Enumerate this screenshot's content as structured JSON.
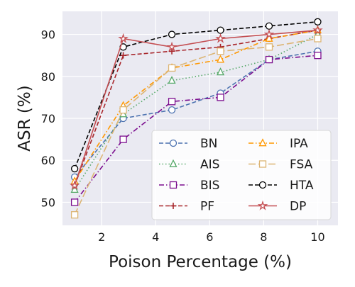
{
  "chart_data": {
    "type": "line",
    "title": "",
    "xlabel": "Poison Percentage (%)",
    "ylabel": "ASR (%)",
    "xlim": [
      0.55,
      10.75
    ],
    "ylim": [
      44.5,
      95.5
    ],
    "xticks": [
      2,
      4,
      6,
      8,
      10
    ],
    "yticks": [
      50,
      60,
      70,
      80,
      90
    ],
    "grid": true,
    "legend_position": "lower-right",
    "legend_columns": 2,
    "x": [
      1,
      2.8,
      4.6,
      6.4,
      8.2,
      10
    ],
    "series": [
      {
        "name": "BN",
        "color": "#4c72b0",
        "dash": "dashed",
        "marker": "circle",
        "values": [
          56,
          70,
          72,
          76,
          84,
          86
        ]
      },
      {
        "name": "AIS",
        "color": "#55a868",
        "dash": "dotted",
        "marker": "triangle",
        "values": [
          53,
          71,
          79,
          81,
          84,
          90
        ]
      },
      {
        "name": "BIS",
        "color": "#7b0d8e",
        "dash": "dashdot",
        "marker": "square",
        "values": [
          50,
          65,
          74,
          75,
          84,
          85
        ]
      },
      {
        "name": "PF",
        "color": "#a8272c",
        "dash": "dashed",
        "marker": "plus",
        "values": [
          54,
          85,
          86,
          87,
          89,
          91
        ]
      },
      {
        "name": "IPA",
        "color": "#ff9800",
        "dash": "dashdot",
        "marker": "triangle",
        "values": [
          55,
          73,
          82,
          84,
          89,
          91
        ]
      },
      {
        "name": "FSA",
        "color": "#dcb574",
        "dash": "longdash",
        "marker": "square",
        "values": [
          47,
          72,
          82,
          86,
          87,
          89
        ]
      },
      {
        "name": "HTA",
        "color": "#000000",
        "dash": "dashed",
        "marker": "circle",
        "values": [
          58,
          87,
          90,
          91,
          92,
          93
        ]
      },
      {
        "name": "DP",
        "color": "#c44e52",
        "dash": "solid",
        "marker": "star",
        "values": [
          54,
          89,
          87,
          89,
          90,
          91
        ]
      }
    ]
  }
}
